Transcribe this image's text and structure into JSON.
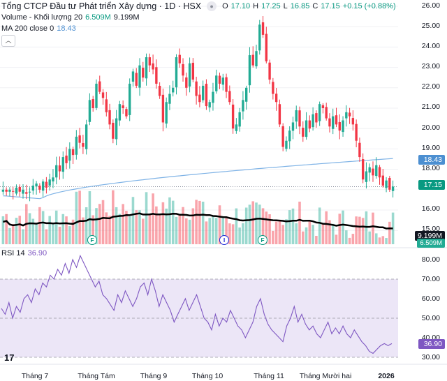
{
  "header": {
    "symbol_title": "Tổng CTCP Đầu tư Phát triển Xây dựng · 1D · HSX",
    "ohlc": [
      {
        "key": "O",
        "value": "17.10"
      },
      {
        "key": "H",
        "value": "17.25"
      },
      {
        "key": "L",
        "value": "16.85"
      },
      {
        "key": "C",
        "value": "17.15"
      }
    ],
    "change": "+0.15 (+0.88%)"
  },
  "volume_legend": {
    "label": "Volume - Khối lượng 20",
    "value1": "6.509M",
    "value2": "9.199M"
  },
  "ma_legend": {
    "label": "MA 200 close 0",
    "value": "18.43"
  },
  "rsi_legend": {
    "label": "RSI 14",
    "value": "36.90"
  },
  "price_axis": [
    "26.00",
    "25.00",
    "24.00",
    "23.00",
    "22.00",
    "21.00",
    "20.00",
    "19.00",
    "18.00",
    "17.00",
    "16.00",
    "15.00"
  ],
  "rsi_axis": [
    "80.00",
    "70.00",
    "60.00",
    "50.00",
    "40.00",
    "30.00"
  ],
  "badges": {
    "ma": "18.43",
    "price": "17.15",
    "vol_ma": "9.199M",
    "vol": "6.509M",
    "rsi": "36.90"
  },
  "x_axis": [
    "Tháng 7",
    "Tháng Tám",
    "Tháng 9",
    "Tháng 10",
    "Tháng 11",
    "Tháng Mười hai",
    "2026"
  ],
  "events": [
    "F",
    "I",
    "F"
  ],
  "logo": "17",
  "colors": {
    "up": "#22ab94",
    "down": "#f23645",
    "ma": "#7fb3e6",
    "vol_ma": "#000000",
    "rsi": "#7e57c2",
    "rsi_band": "#ece6f7"
  },
  "chart_data": [
    {
      "type": "candlestick",
      "title": "Tổng CTCP Đầu tư Phát triển Xây dựng · 1D · HSX",
      "ylim": [
        15.0,
        26.0
      ],
      "closes": [
        17.0,
        16.9,
        17.0,
        16.9,
        17.1,
        16.9,
        17.0,
        16.8,
        16.9,
        17.2,
        17.3,
        17.0,
        17.4,
        17.1,
        17.5,
        17.6,
        18.2,
        17.9,
        18.6,
        18.3,
        19.0,
        18.7,
        19.6,
        19.3,
        19.1,
        20.2,
        21.4,
        21.0,
        22.2,
        21.8,
        21.5,
        20.8,
        20.2,
        19.5,
        20.5,
        21.2,
        21.0,
        20.6,
        22.2,
        22.8,
        22.1,
        23.1,
        22.5,
        23.5,
        23.1,
        22.9,
        22.2,
        21.6,
        20.3,
        21.3,
        21.7,
        22.0,
        23.5,
        23.2,
        22.6,
        22.0,
        23.2,
        22.4,
        21.6,
        21.3,
        22.1,
        21.1,
        21.3,
        21.8,
        22.6,
        22.2,
        22.5,
        21.8,
        21.3,
        20.0,
        20.2,
        20.8,
        21.4,
        22.0,
        23.6,
        23.1,
        23.8,
        25.1,
        24.6,
        23.3,
        22.4,
        21.7,
        21.3,
        20.2,
        19.1,
        19.4,
        19.9,
        20.3,
        20.9,
        20.1,
        19.6,
        20.4,
        20.0,
        20.7,
        20.3,
        21.2,
        21.0,
        20.5,
        20.1,
        20.6,
        20.2,
        19.9,
        20.4,
        20.8,
        20.6,
        20.2,
        19.4,
        18.6,
        17.5,
        17.9,
        18.1,
        17.7,
        18.2,
        17.6,
        17.2,
        17.45,
        17.0,
        17.15
      ],
      "ma200_first": 16.7,
      "ma200_last": 18.43
    },
    {
      "type": "bar",
      "title": "Volume - Khối lượng 20",
      "last_value": "6.509M",
      "ma_value": "9.199M"
    },
    {
      "type": "line",
      "title": "RSI 14",
      "ylim": [
        30,
        85
      ],
      "bands": [
        30,
        70
      ],
      "values": [
        55,
        52,
        58,
        50,
        56,
        53,
        60,
        62,
        58,
        65,
        62,
        68,
        66,
        72,
        70,
        75,
        72,
        78,
        73,
        80,
        76,
        82,
        78,
        74,
        70,
        66,
        69,
        62,
        60,
        57,
        54,
        62,
        58,
        64,
        60,
        56,
        60,
        66,
        68,
        62,
        70,
        64,
        56,
        62,
        58,
        54,
        48,
        52,
        56,
        60,
        54,
        58,
        62,
        56,
        50,
        48,
        44,
        52,
        46,
        50,
        48,
        54,
        50,
        46,
        44,
        40,
        44,
        48,
        56,
        60,
        52,
        47,
        44,
        42,
        40,
        38,
        46,
        50,
        56,
        48,
        52,
        47,
        44,
        46,
        42,
        40,
        44,
        48,
        42,
        45,
        42,
        46,
        42,
        40,
        44,
        41,
        38,
        36,
        33,
        32,
        34,
        36,
        37,
        36,
        37
      ]
    }
  ]
}
